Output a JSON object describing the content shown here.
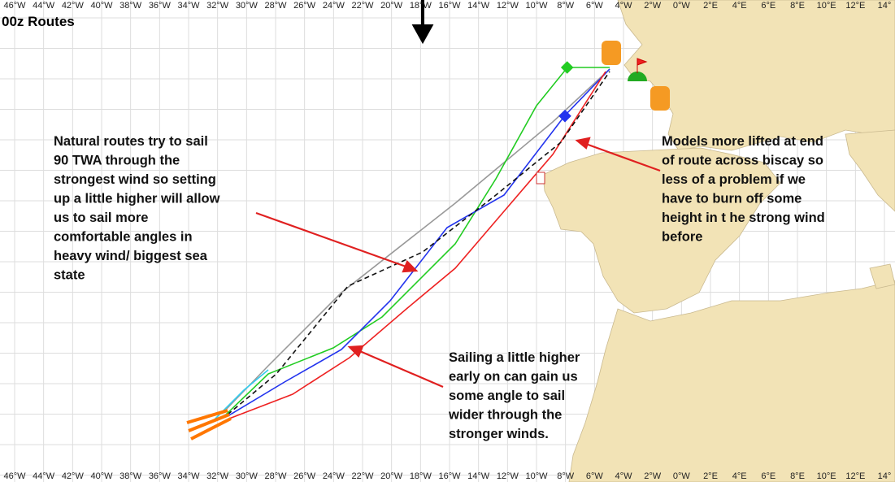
{
  "title": "00z Routes",
  "longitudes": [
    "46°W",
    "44°W",
    "42°W",
    "40°W",
    "38°W",
    "36°W",
    "34°W",
    "32°W",
    "30°W",
    "28°W",
    "26°W",
    "24°W",
    "22°W",
    "20°W",
    "18°W",
    "16°W",
    "14°W",
    "12°W",
    "10°W",
    "8°W",
    "6°W",
    "4°W",
    "2°W",
    "0°W",
    "2°E",
    "4°E",
    "6°E",
    "8°E",
    "10°E",
    "12°E",
    "14°"
  ],
  "annotations": [
    {
      "lines": [
        "Natural routes try to sail",
        "90 TWA through the",
        "strongest wind so setting",
        "up a little higher will allow",
        "us to sail more",
        "comfortable angles in",
        "heavy wind/ biggest sea",
        "state"
      ]
    },
    {
      "lines": [
        "Models more lifted at end",
        "of route across biscay so",
        "less of a problem if we",
        "have to burn off some",
        "height in t he strong wind",
        "before"
      ]
    },
    {
      "lines": [
        "Sailing a little higher",
        "early on can gain us",
        "some angle to sail",
        "wider through the",
        "stronger winds."
      ]
    }
  ]
}
